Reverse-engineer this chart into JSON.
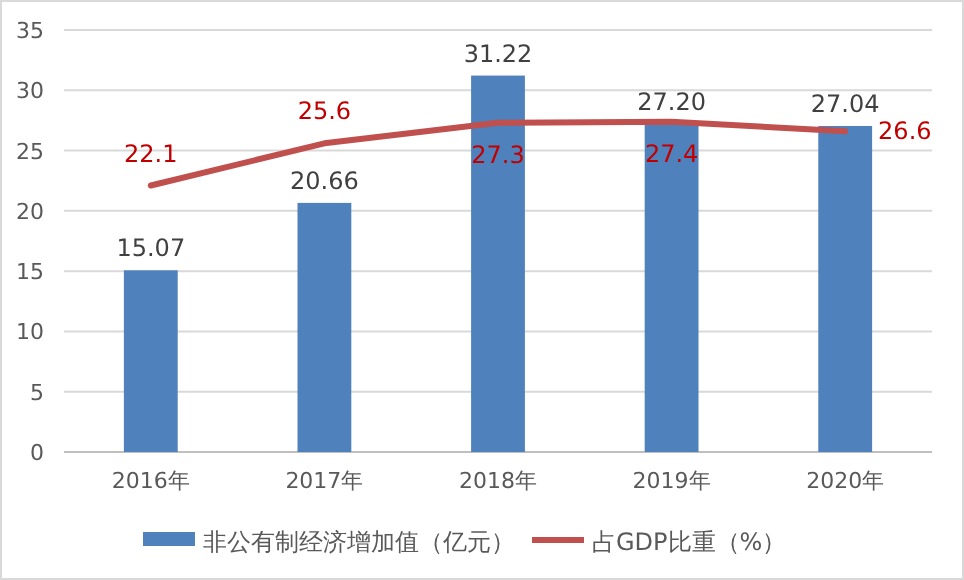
{
  "chart_data": {
    "type": "bar",
    "categories": [
      "2016年",
      "2017年",
      "2018年",
      "2019年",
      "2020年"
    ],
    "series": [
      {
        "name": "非公有制经济增加值（亿元）",
        "color": "#4f81bd",
        "values": [
          15.07,
          20.66,
          31.22,
          27.2,
          27.04
        ],
        "value_labels": [
          "15.07",
          "20.66",
          "31.22",
          "27.20",
          "27.04"
        ]
      },
      {
        "name": "占GDP比重（%）",
        "type": "line",
        "color": "#c0504d",
        "values": [
          22.1,
          25.6,
          27.3,
          27.4,
          26.6
        ],
        "value_labels": [
          "22.1",
          "25.6",
          "27.3",
          "27.4",
          "26.6"
        ]
      }
    ],
    "ylim": [
      0,
      35
    ],
    "yticks": [
      0,
      5,
      10,
      15,
      20,
      25,
      30,
      35
    ],
    "grid": "y",
    "legend": "bottom"
  }
}
